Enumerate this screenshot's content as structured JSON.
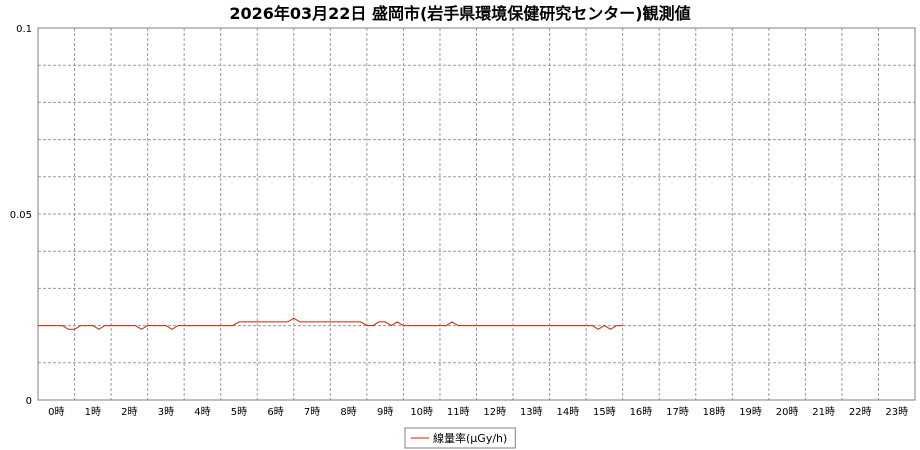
{
  "colors": {
    "background": "#ffffff",
    "plot_border": "#808080",
    "grid": "#9a9a9a",
    "series": "#cc2200",
    "axis_text": "#000000"
  },
  "chart_data": {
    "type": "line",
    "title": "2026年03月22日 盛岡市(岩手県環境保健研究センター)観測値",
    "xlabel": "",
    "ylabel": "",
    "ylim": [
      0,
      0.1
    ],
    "yticks": [
      0,
      0.05,
      0.1
    ],
    "ytick_labels": [
      "0",
      "0.05",
      "0.1"
    ],
    "xlim": [
      0,
      24
    ],
    "x_categories": [
      "0時",
      "1時",
      "2時",
      "3時",
      "4時",
      "5時",
      "6時",
      "7時",
      "8時",
      "9時",
      "10時",
      "11時",
      "12時",
      "13時",
      "14時",
      "15時",
      "16時",
      "17時",
      "18時",
      "19時",
      "20時",
      "21時",
      "22時",
      "23時"
    ],
    "grid": true,
    "legend_position": "bottom-center",
    "series": [
      {
        "name": "線量率(μGy/h)",
        "color": "#cc2200",
        "x": [
          0,
          0.17,
          0.33,
          0.5,
          0.67,
          0.83,
          1,
          1.17,
          1.33,
          1.5,
          1.67,
          1.83,
          2,
          2.17,
          2.33,
          2.5,
          2.67,
          2.83,
          3,
          3.17,
          3.33,
          3.5,
          3.67,
          3.83,
          4,
          4.17,
          4.33,
          4.5,
          4.67,
          4.83,
          5,
          5.17,
          5.33,
          5.5,
          5.67,
          5.83,
          6,
          6.17,
          6.33,
          6.5,
          6.67,
          6.83,
          7,
          7.17,
          7.33,
          7.5,
          7.67,
          7.83,
          8,
          8.17,
          8.33,
          8.5,
          8.67,
          8.83,
          9,
          9.17,
          9.33,
          9.5,
          9.67,
          9.83,
          10,
          10.17,
          10.33,
          10.5,
          10.67,
          10.83,
          11,
          11.17,
          11.33,
          11.5,
          11.67,
          11.83,
          12,
          12.17,
          12.33,
          12.5,
          12.67,
          12.83,
          13,
          13.17,
          13.33,
          13.5,
          13.67,
          13.83,
          14,
          14.17,
          14.33,
          14.5,
          14.67,
          14.83,
          15,
          15.17,
          15.33,
          15.5,
          15.67,
          15.83,
          16
        ],
        "values": [
          0.02,
          0.02,
          0.02,
          0.02,
          0.02,
          0.019,
          0.019,
          0.02,
          0.02,
          0.02,
          0.019,
          0.02,
          0.02,
          0.02,
          0.02,
          0.02,
          0.02,
          0.019,
          0.02,
          0.02,
          0.02,
          0.02,
          0.019,
          0.02,
          0.02,
          0.02,
          0.02,
          0.02,
          0.02,
          0.02,
          0.02,
          0.02,
          0.02,
          0.021,
          0.021,
          0.021,
          0.021,
          0.021,
          0.021,
          0.021,
          0.021,
          0.021,
          0.022,
          0.021,
          0.021,
          0.021,
          0.021,
          0.021,
          0.021,
          0.021,
          0.021,
          0.021,
          0.021,
          0.021,
          0.02,
          0.02,
          0.021,
          0.021,
          0.02,
          0.021,
          0.02,
          0.02,
          0.02,
          0.02,
          0.02,
          0.02,
          0.02,
          0.02,
          0.021,
          0.02,
          0.02,
          0.02,
          0.02,
          0.02,
          0.02,
          0.02,
          0.02,
          0.02,
          0.02,
          0.02,
          0.02,
          0.02,
          0.02,
          0.02,
          0.02,
          0.02,
          0.02,
          0.02,
          0.02,
          0.02,
          0.02,
          0.02,
          0.019,
          0.02,
          0.019,
          0.02,
          0.02
        ]
      }
    ]
  }
}
